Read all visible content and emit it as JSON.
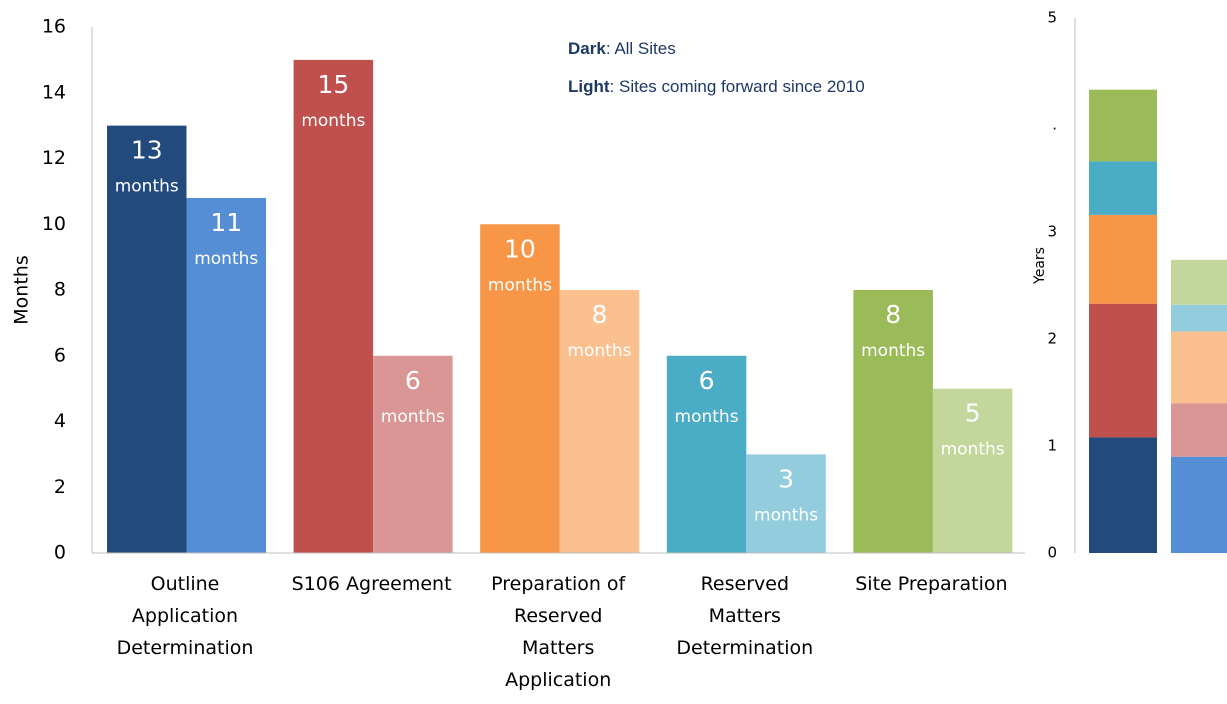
{
  "chart_data": [
    {
      "type": "bar",
      "y_label": "Months",
      "categories": [
        "Outline\nApplication\nDetermination",
        "S106 Agreement",
        "Preparation of\nReserved\nMatters\nApplication",
        "Reserved\nMatters\nDetermination",
        "Site Preparation"
      ],
      "series": [
        {
          "colors": [
            "#234a7d",
            "#c0504d",
            "#f79646",
            "#4bacc6",
            "#9bbb59"
          ],
          "values": [
            13,
            15,
            10,
            6,
            8
          ],
          "value_labels": [
            "13\nmonths",
            "15\nmonths",
            "10\nmonths",
            "6\nmonths",
            "8\nmonths"
          ]
        },
        {
          "colors": [
            "#558ed5",
            "#d99694",
            "#fac090",
            "#93cddd",
            "#c3d69b"
          ],
          "values": [
            10.8,
            6,
            8,
            3,
            5
          ],
          "value_labels": [
            "11\nmonths",
            "6\nmonths",
            "8\nmonths",
            "3\nmonths",
            "5\nmonths"
          ]
        }
      ],
      "annotations": [
        {
          "bold": "Dark",
          "text": ": All Sites"
        },
        {
          "bold": "Light",
          "text": ": Sites coming forward since 2010"
        }
      ],
      "ylim": [
        0,
        16
      ],
      "yticks": [
        0,
        2,
        4,
        6,
        8,
        10,
        12,
        14,
        16
      ]
    },
    {
      "type": "stacked_bar",
      "y_label": "Years",
      "categories": [
        null,
        null
      ],
      "series": [
        {
          "colors": [
            "#234a7d",
            "#558ed5"
          ],
          "values": [
            1.08,
            0.9
          ]
        },
        {
          "colors": [
            "#c0504d",
            "#d99694"
          ],
          "values": [
            1.25,
            0.5
          ]
        },
        {
          "colors": [
            "#f79646",
            "#fac090"
          ],
          "values": [
            0.83,
            0.67
          ]
        },
        {
          "colors": [
            "#4bacc6",
            "#93cddd"
          ],
          "values": [
            0.5,
            0.25
          ]
        },
        {
          "colors": [
            "#9bbb59",
            "#c3d69b"
          ],
          "values": [
            0.67,
            0.42
          ]
        }
      ],
      "ylim": [
        0,
        5
      ],
      "yticks": [
        0,
        1,
        2,
        3,
        {
          "value": 4,
          "label": "."
        },
        5
      ]
    }
  ]
}
